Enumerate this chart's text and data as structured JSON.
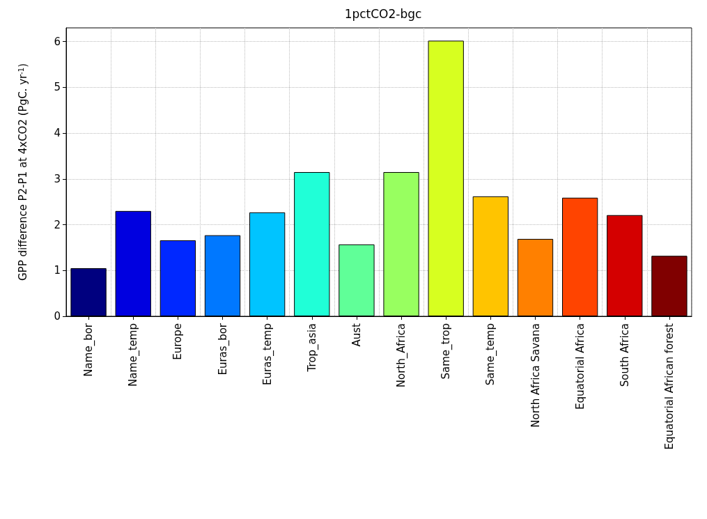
{
  "chart_data": {
    "type": "bar",
    "title": "1pctCO2-bgc",
    "ylabel": "GPP difference P2-P1 at 4xCO2 (PgC. yr$^{-1}$)",
    "categories": [
      "Name_bor",
      "Name_temp",
      "Europe",
      "Euras_bor",
      "Euras_temp",
      "Trop_asia",
      "Aust",
      "North_Africa",
      "Same_trop",
      "Same_temp",
      "North Africa Savana",
      "Equatorial Africa",
      "South Africa",
      "Equatorial African forest"
    ],
    "values": [
      1.05,
      2.3,
      1.66,
      1.77,
      2.27,
      3.15,
      1.57,
      3.15,
      6.02,
      2.62,
      1.69,
      2.59,
      2.21,
      1.32
    ],
    "colors": [
      "#00007f",
      "#0000e0",
      "#0028ff",
      "#0078ff",
      "#00c4ff",
      "#20ffd7",
      "#60ff98",
      "#98ff60",
      "#d7ff20",
      "#ffc400",
      "#ff8000",
      "#ff4400",
      "#d40000",
      "#800000"
    ],
    "ylim": [
      0,
      6.3
    ],
    "yticks": [
      0,
      1,
      2,
      3,
      4,
      5,
      6
    ],
    "grid": true
  }
}
